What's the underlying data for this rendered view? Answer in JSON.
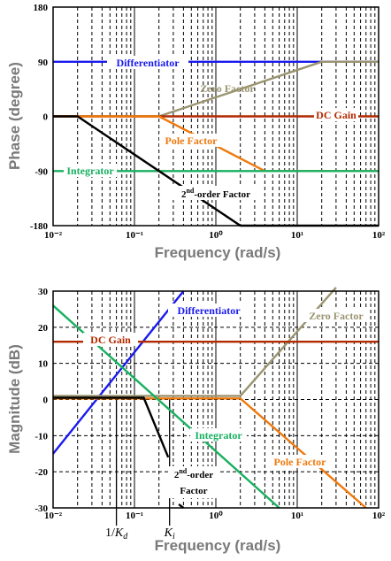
{
  "colors": {
    "differentiator": "#1a1aee",
    "zero_factor": "#9a9470",
    "dc_gain": "#b22a00",
    "pole_factor": "#ee7a10",
    "integrator": "#18b060",
    "second_order": "#000000"
  },
  "chart_data": [
    {
      "type": "line",
      "xscale": "log",
      "xlabel": "Frequency  (rad/s)",
      "ylabel": "Phase (degree)",
      "xlim": [
        0.01,
        100
      ],
      "ylim": [
        -180,
        180
      ],
      "xticks": [
        "10⁻²",
        "10⁻¹",
        "10⁰",
        "10¹",
        "10²"
      ],
      "yticks": [
        {
          "v": 180,
          "t": "180"
        },
        {
          "v": 90,
          "t": "90"
        },
        {
          "v": 0,
          "t": "0"
        },
        {
          "v": -90,
          "t": "-90"
        },
        {
          "v": -180,
          "t": "-180"
        }
      ],
      "grid": true,
      "series": [
        {
          "key": "differentiator",
          "name": "Differentiator",
          "x": [
            0.01,
            100
          ],
          "y": [
            90,
            90
          ]
        },
        {
          "key": "zero_factor",
          "name": "Zero Factor",
          "x": [
            0.01,
            0.2,
            20,
            100
          ],
          "y": [
            0,
            0,
            90,
            90
          ]
        },
        {
          "key": "dc_gain",
          "name": "DC Gain",
          "x": [
            0.01,
            100
          ],
          "y": [
            0,
            0
          ]
        },
        {
          "key": "pole_factor",
          "name": "Pole Factor",
          "x": [
            0.01,
            0.2,
            4,
            100
          ],
          "y": [
            0,
            0,
            -90,
            -90
          ]
        },
        {
          "key": "integrator",
          "name": "Integrator",
          "x": [
            0.01,
            100
          ],
          "y": [
            -90,
            -90
          ]
        },
        {
          "key": "second_order",
          "name": "2nd-order Factor",
          "x": [
            0.01,
            0.02,
            2,
            100
          ],
          "y": [
            0,
            0,
            -180,
            -180
          ]
        }
      ],
      "labels": [
        {
          "key": "differentiator",
          "text": "Differentiator"
        },
        {
          "key": "zero_factor",
          "text": "Zero Factor"
        },
        {
          "key": "dc_gain",
          "text": "DC Gain"
        },
        {
          "key": "pole_factor",
          "text": "Pole Factor"
        },
        {
          "key": "integrator",
          "text": "Integrator"
        },
        {
          "key": "second_order",
          "text": "2nd-order Factor"
        }
      ]
    },
    {
      "type": "line",
      "xscale": "log",
      "xlabel": "Frequency  (rad/s)",
      "ylabel": "Magnitude (dB)",
      "xlim": [
        0.01,
        100
      ],
      "ylim": [
        -30,
        30
      ],
      "xticks": [
        "10⁻²",
        "10⁻¹",
        "10⁰",
        "10¹",
        "10²"
      ],
      "yticks": [
        {
          "v": 30,
          "t": "30"
        },
        {
          "v": 20,
          "t": "20"
        },
        {
          "v": 10,
          "t": "10"
        },
        {
          "v": 0,
          "t": "0"
        },
        {
          "v": -10,
          "t": "-10"
        },
        {
          "v": -20,
          "t": "-20"
        },
        {
          "v": -30,
          "t": "-30"
        }
      ],
      "grid": true,
      "series": [
        {
          "key": "differentiator",
          "name": "Differentiator",
          "x": [
            0.01,
            0.4
          ],
          "y": [
            -15,
            30
          ]
        },
        {
          "key": "zero_factor",
          "name": "Zero Factor",
          "x": [
            0.01,
            2,
            30
          ],
          "y": [
            1,
            1,
            31
          ]
        },
        {
          "key": "dc_gain",
          "name": "DC Gain",
          "x": [
            0.01,
            100
          ],
          "y": [
            16,
            16
          ]
        },
        {
          "key": "pole_factor",
          "name": "Pole Factor",
          "x": [
            0.01,
            2,
            70
          ],
          "y": [
            0.3,
            0.3,
            -30
          ]
        },
        {
          "key": "integrator",
          "name": "Integrator",
          "x": [
            0.01,
            6
          ],
          "y": [
            26,
            -30
          ]
        },
        {
          "key": "second_order",
          "name": "2nd-order Factor",
          "x": [
            0.01,
            0.13,
            0.26
          ],
          "y": [
            0.5,
            0.5,
            -16
          ]
        },
        {
          "key": "second_order",
          "name": "2nd-order Factor",
          "x": [
            0.35,
            0.4
          ],
          "y": [
            -29,
            -30
          ]
        }
      ],
      "labels": [
        {
          "key": "differentiator",
          "text": "Differentiator"
        },
        {
          "key": "zero_factor",
          "text": "Zero Factor"
        },
        {
          "key": "dc_gain",
          "text": "DC Gain"
        },
        {
          "key": "integrator",
          "text": "Integrator"
        },
        {
          "key": "pole_factor",
          "text": "Pole Factor"
        },
        {
          "key": "second_order",
          "text": "2nd-order"
        },
        {
          "key": "second_order",
          "text": "Factor"
        }
      ],
      "markers": [
        {
          "x": 0.06,
          "label": "1/Kd"
        },
        {
          "x": 0.27,
          "label": "Ki"
        }
      ]
    }
  ]
}
